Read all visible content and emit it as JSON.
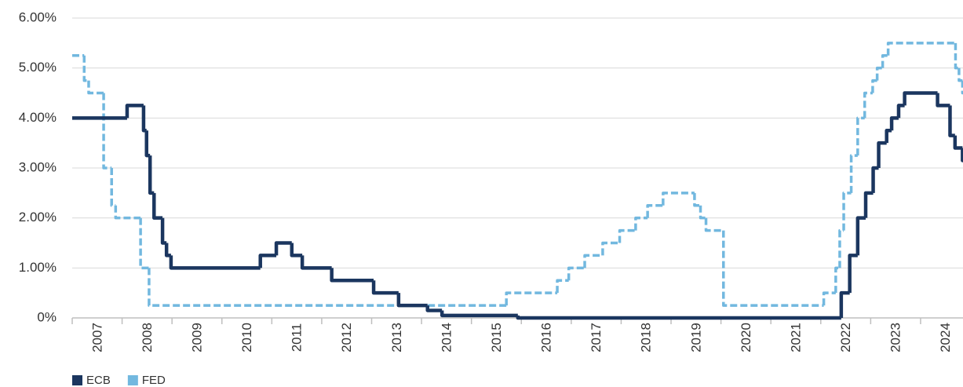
{
  "chart_data": {
    "type": "line",
    "xlim": [
      2007,
      2024.85
    ],
    "xticks": [
      {
        "value": 2007,
        "label": "2007"
      },
      {
        "value": 2008,
        "label": "2008"
      },
      {
        "value": 2009,
        "label": "2009"
      },
      {
        "value": 2010,
        "label": "2010"
      },
      {
        "value": 2011,
        "label": "2011"
      },
      {
        "value": 2012,
        "label": "2012"
      },
      {
        "value": 2013,
        "label": "2013"
      },
      {
        "value": 2014,
        "label": "2014"
      },
      {
        "value": 2015,
        "label": "2015"
      },
      {
        "value": 2016,
        "label": "2016"
      },
      {
        "value": 2017,
        "label": "2017"
      },
      {
        "value": 2018,
        "label": "2018"
      },
      {
        "value": 2019,
        "label": "2019"
      },
      {
        "value": 2020,
        "label": "2020"
      },
      {
        "value": 2021,
        "label": "2021"
      },
      {
        "value": 2022,
        "label": "2022"
      },
      {
        "value": 2023,
        "label": "2023"
      },
      {
        "value": 2024,
        "label": "2024"
      }
    ],
    "ylim": [
      0,
      6
    ],
    "yticks": [
      {
        "value": 0,
        "label": "0%"
      },
      {
        "value": 1,
        "label": "1.00%"
      },
      {
        "value": 2,
        "label": "2.00%"
      },
      {
        "value": 3,
        "label": "3.00%"
      },
      {
        "value": 4,
        "label": "4.00%"
      },
      {
        "value": 5,
        "label": "5.00%"
      },
      {
        "value": 6,
        "label": "6.00%"
      }
    ],
    "grid": true,
    "legend": "bottom-left",
    "series": [
      {
        "name": "ECB",
        "color": "#1b365f",
        "dash": false,
        "x": [
          2007.0,
          2008.1,
          2008.43,
          2008.49,
          2008.56,
          2008.64,
          2008.81,
          2008.89,
          2008.98,
          2010.77,
          2011.09,
          2011.4,
          2011.61,
          2012.2,
          2013.04,
          2013.54,
          2014.12,
          2014.41,
          2015.93,
          2022.41,
          2022.58,
          2022.74,
          2022.9,
          2023.05,
          2023.16,
          2023.32,
          2023.42,
          2023.56,
          2023.68,
          2024.34,
          2024.59,
          2024.69,
          2024.84
        ],
        "values": [
          4.0,
          4.25,
          3.75,
          3.25,
          2.5,
          2.0,
          1.5,
          1.25,
          1.0,
          1.25,
          1.5,
          1.25,
          1.0,
          0.75,
          0.5,
          0.25,
          0.15,
          0.05,
          0.0,
          0.5,
          1.25,
          2.0,
          2.5,
          3.0,
          3.5,
          3.75,
          4.0,
          4.25,
          4.5,
          4.25,
          3.65,
          3.4,
          3.15
        ]
      },
      {
        "name": "FED",
        "color": "#72b8df",
        "dash": true,
        "x": [
          2007.0,
          2007.24,
          2007.33,
          2007.63,
          2007.79,
          2007.87,
          2008.37,
          2008.54,
          2015.7,
          2016.72,
          2016.95,
          2017.27,
          2017.63,
          2017.97,
          2018.29,
          2018.53,
          2018.84,
          2019.47,
          2019.59,
          2019.7,
          2020.05,
          2022.06,
          2022.3,
          2022.38,
          2022.46,
          2022.61,
          2022.74,
          2022.88,
          2023.04,
          2023.13,
          2023.24,
          2023.35,
          2024.7,
          2024.77,
          2024.84
        ],
        "values": [
          5.25,
          4.75,
          4.5,
          3.0,
          2.25,
          2.0,
          1.0,
          0.25,
          0.5,
          0.75,
          1.0,
          1.25,
          1.5,
          1.75,
          2.0,
          2.25,
          2.5,
          2.25,
          2.0,
          1.75,
          0.25,
          0.5,
          1.0,
          1.75,
          2.5,
          3.25,
          4.0,
          4.5,
          4.75,
          5.0,
          5.25,
          5.5,
          5.0,
          4.75,
          4.5
        ]
      }
    ]
  }
}
